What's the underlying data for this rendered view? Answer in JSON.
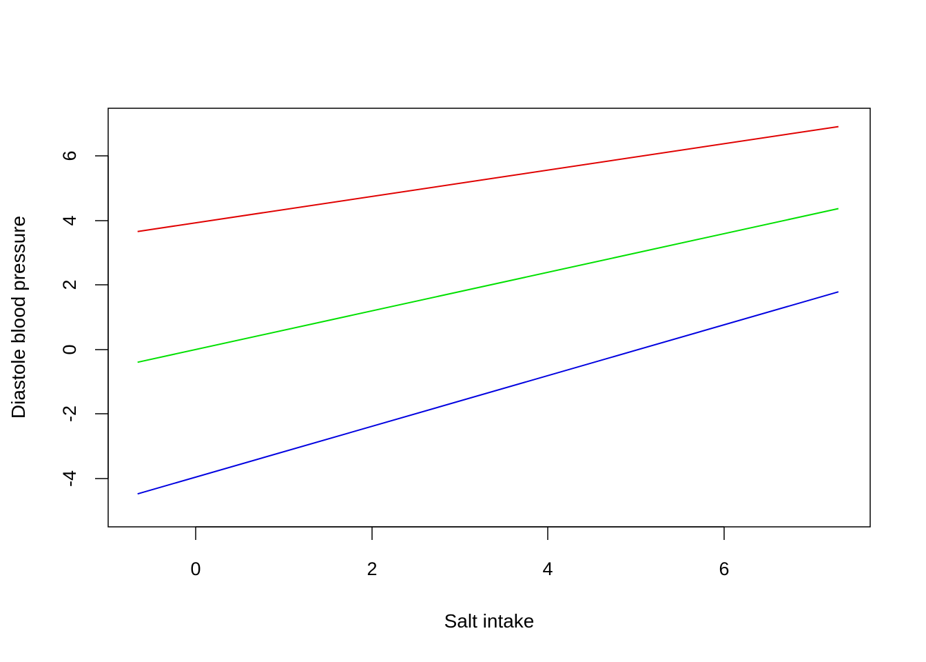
{
  "chart_data": {
    "type": "line",
    "title": "",
    "xlabel": "Salt intake",
    "ylabel": "Diastole blood pressure",
    "xlim": [
      -1.0,
      7.6
    ],
    "ylim": [
      -5.5,
      7.5
    ],
    "x_ticks": [
      0,
      2,
      4,
      6
    ],
    "x_tick_labels": [
      "0",
      "2",
      "4",
      "6"
    ],
    "y_ticks": [
      -4,
      -2,
      0,
      2,
      4,
      6
    ],
    "y_tick_labels": [
      "-4",
      "-2",
      "0",
      "2",
      "4",
      "6"
    ],
    "grid": false,
    "legend": "none",
    "series": [
      {
        "color": "#e00000",
        "x": [
          -0.66,
          7.3
        ],
        "y": [
          3.66,
          6.91
        ]
      },
      {
        "color": "#00e000",
        "x": [
          -0.66,
          7.3
        ],
        "y": [
          -0.39,
          4.37
        ]
      },
      {
        "color": "#0000e0",
        "x": [
          -0.66,
          7.3
        ],
        "y": [
          -4.47,
          1.79
        ]
      }
    ]
  }
}
